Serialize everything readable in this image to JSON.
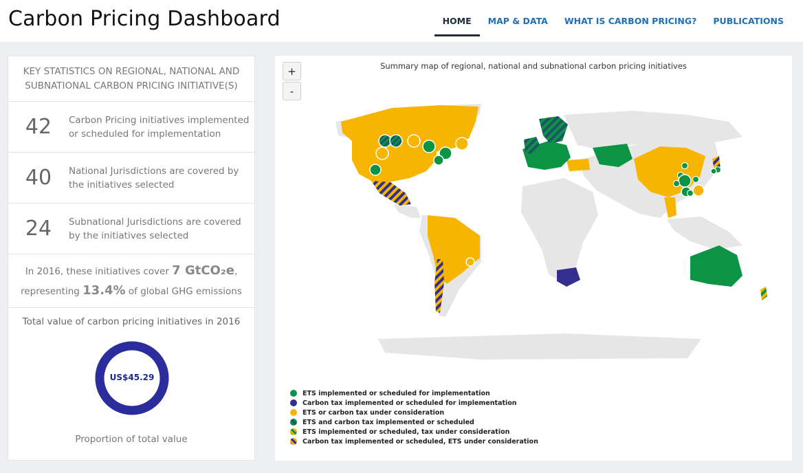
{
  "header": {
    "title": "Carbon Pricing Dashboard",
    "nav": [
      {
        "label": "HOME",
        "active": true
      },
      {
        "label": "MAP & DATA",
        "active": false
      },
      {
        "label": "WHAT IS CARBON PRICING?",
        "active": false
      },
      {
        "label": "PUBLICATIONS",
        "active": false
      }
    ]
  },
  "stats": {
    "heading": "KEY STATISTICS ON REGIONAL, NATIONAL AND SUBNATIONAL CARBON PRICING INITIATIVE(S)",
    "rows": [
      {
        "value": "42",
        "text": "Carbon Pricing initiatives implemented or scheduled for implementation"
      },
      {
        "value": "40",
        "text": "National Jurisdictions are covered by the initiatives selected"
      },
      {
        "value": "24",
        "text": "Subnational Jurisdictions are covered by the initiatives selected"
      }
    ],
    "coverage": {
      "line1_pre": "In 2016, these initiatives cover ",
      "line1_value": "7 GtCO₂e",
      "line1_post": ",",
      "line2_pre": "representing ",
      "line2_value": "13.4%",
      "line2_post": " of global GHG emissions"
    },
    "value_title": "Total value of carbon pricing initiatives in 2016",
    "donut_label": "US$45.29",
    "donut_proportion": 1.0,
    "donut_color": "#2b2d9c",
    "value_subtitle": "Proportion of total value"
  },
  "map": {
    "title": "Summary map of regional, national and subnational carbon pricing initiatives",
    "zoom_in": "+",
    "zoom_out": "-",
    "colors": {
      "ets": "#0a9444",
      "tax": "#332f8e",
      "consideration": "#f7b500",
      "both": "#1d5566",
      "land": "#e6e6e6"
    },
    "legend": [
      {
        "label": "ETS implemented or scheduled for implementation",
        "swatch": "ets"
      },
      {
        "label": "Carbon tax implemented or scheduled for implementation",
        "swatch": "tax"
      },
      {
        "label": "ETS or carbon tax under consideration",
        "swatch": "consideration"
      },
      {
        "label": "ETS and carbon tax implemented or scheduled",
        "swatch": "both"
      },
      {
        "label": "ETS implemented or scheduled, tax under consideration",
        "swatch": "ets-consideration"
      },
      {
        "label": "Carbon tax implemented or scheduled, ETS under consideration",
        "swatch": "tax-consideration"
      }
    ]
  }
}
